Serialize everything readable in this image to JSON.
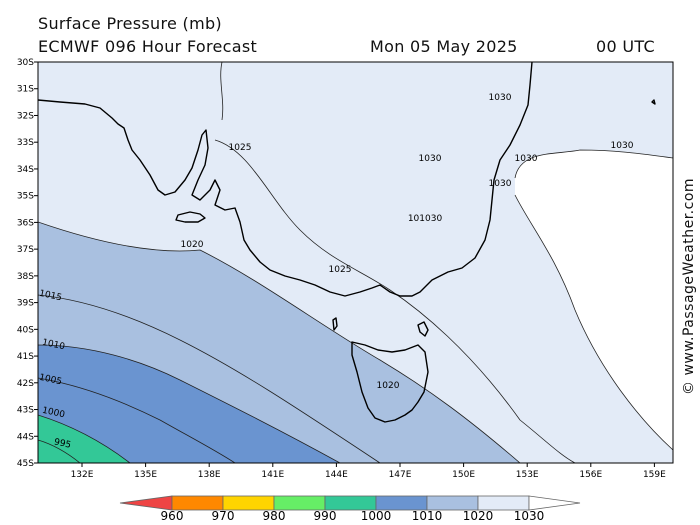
{
  "header": {
    "title": "Surface Pressure (mb)",
    "model": "ECMWF 096 Hour Forecast",
    "date": "Mon 05 May 2025",
    "time": "00 UTC"
  },
  "watermark": "© www.PassageWeather.com",
  "map": {
    "lat_labels": [
      "30S",
      "31S",
      "32S",
      "33S",
      "34S",
      "35S",
      "36S",
      "37S",
      "38S",
      "39S",
      "40S",
      "41S",
      "42S",
      "43S",
      "44S",
      "45S"
    ],
    "lon_labels": [
      "132E",
      "135E",
      "138E",
      "141E",
      "144E",
      "147E",
      "150E",
      "153E",
      "156E",
      "159E"
    ],
    "contour_labels": [
      "1030",
      "1030",
      "1030",
      "1030",
      "1030",
      "101030",
      "1025",
      "1025",
      "1020",
      "1020",
      "1015",
      "1010",
      "1005",
      "1000",
      "995"
    ],
    "fill_colors": {
      "gt1030": "#ffffff",
      "b1020_1030": "#e3ebf7",
      "b1010_1020": "#a9c0e0",
      "b1000_1010": "#6a94d0",
      "b990_1000": "#33c897"
    }
  },
  "colorbar": {
    "labels": [
      "960",
      "970",
      "980",
      "990",
      "1000",
      "1010",
      "1020",
      "1030"
    ],
    "colors": [
      "#ee4444",
      "#ff8800",
      "#ffd400",
      "#66ee66",
      "#33c897",
      "#6a94d0",
      "#a9c0e0",
      "#e3ebf7",
      "#ffffff"
    ]
  }
}
